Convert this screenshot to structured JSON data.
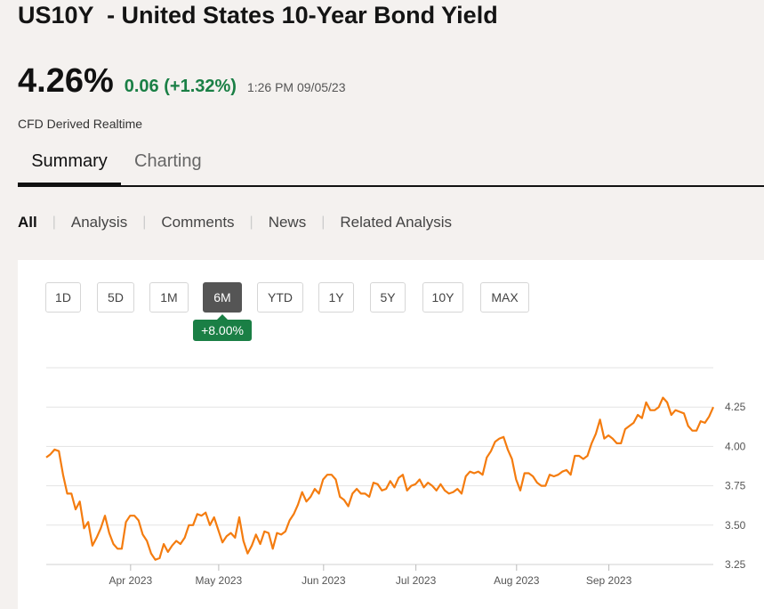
{
  "header": {
    "title": "US10Y  - United States 10-Year Bond Yield",
    "price": "4.26%",
    "change": "0.06 (+1.32%)",
    "time": "1:26 PM 09/05/23",
    "source": "CFD Derived Realtime"
  },
  "tabs": [
    "Summary",
    "Charting"
  ],
  "subnav": [
    "All",
    "Analysis",
    "Comments",
    "News",
    "Related Analysis"
  ],
  "ranges": [
    "1D",
    "5D",
    "1M",
    "6M",
    "YTD",
    "1Y",
    "5Y",
    "10Y",
    "MAX"
  ],
  "active_range": "6M",
  "range_change": "+8.00%",
  "colors": {
    "line": "#f47c0f",
    "positive": "#1a7f45"
  },
  "chart_data": {
    "type": "line",
    "series": [
      {
        "values": [
          3.93,
          3.95,
          3.98,
          3.97,
          3.82,
          3.7,
          3.7,
          3.6,
          3.65,
          3.48,
          3.52,
          3.37,
          3.42,
          3.48,
          3.56,
          3.45,
          3.38,
          3.35,
          3.35,
          3.52,
          3.56,
          3.56,
          3.53,
          3.44,
          3.4,
          3.32,
          3.28,
          3.29,
          3.38,
          3.33,
          3.37,
          3.4,
          3.38,
          3.42,
          3.5,
          3.5,
          3.57,
          3.56,
          3.58,
          3.5,
          3.55,
          3.47,
          3.39,
          3.43,
          3.45,
          3.42,
          3.55,
          3.4,
          3.32,
          3.37,
          3.44,
          3.38,
          3.46,
          3.45,
          3.35,
          3.45,
          3.44,
          3.46,
          3.53,
          3.57,
          3.63,
          3.71,
          3.65,
          3.68,
          3.73,
          3.7,
          3.79,
          3.82,
          3.82,
          3.79,
          3.68,
          3.66,
          3.62,
          3.7,
          3.73,
          3.7,
          3.7,
          3.68,
          3.77,
          3.76,
          3.72,
          3.73,
          3.78,
          3.74,
          3.8,
          3.82,
          3.72,
          3.75,
          3.76,
          3.79,
          3.74,
          3.77,
          3.75,
          3.72,
          3.76,
          3.72,
          3.7,
          3.71,
          3.73,
          3.7,
          3.81,
          3.84,
          3.83,
          3.84,
          3.82,
          3.93,
          3.97,
          4.03,
          4.05,
          4.06,
          3.98,
          3.92,
          3.79,
          3.72,
          3.83,
          3.83,
          3.81,
          3.77,
          3.75,
          3.75,
          3.82,
          3.81,
          3.82,
          3.84,
          3.85,
          3.82,
          3.94,
          3.94,
          3.92,
          3.94,
          4.02,
          4.08,
          4.17,
          4.05,
          4.07,
          4.05,
          4.02,
          4.02,
          4.11,
          4.13,
          4.15,
          4.2,
          4.18,
          4.28,
          4.23,
          4.23,
          4.25,
          4.31,
          4.28,
          4.2,
          4.23,
          4.22,
          4.21,
          4.13,
          4.1,
          4.1,
          4.16,
          4.15,
          4.19,
          4.25
        ]
      }
    ],
    "x_labels": [
      "Apr 2023",
      "May 2023",
      "Jun 2023",
      "Jul 2023",
      "Aug 2023",
      "Sep 2023"
    ],
    "y_ticks": [
      "3.25",
      "3.50",
      "3.75",
      "4.00",
      "4.25"
    ],
    "ylim": [
      3.25,
      4.5
    ],
    "grid": true,
    "y_axis_side": "right"
  }
}
